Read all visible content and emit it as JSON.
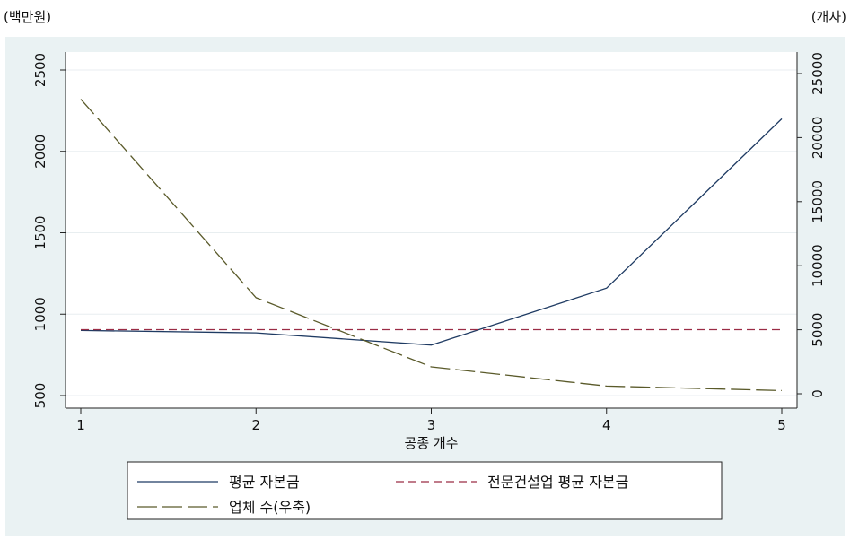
{
  "units": {
    "left": "(백만원)",
    "right": "(개사)"
  },
  "chart_data": {
    "type": "line",
    "xlabel": "공종 개수",
    "x": [
      1,
      2,
      3,
      4,
      5
    ],
    "y_left_ticks": [
      500,
      1000,
      1500,
      2000,
      2500
    ],
    "y_right_ticks": [
      0,
      5000,
      10000,
      15000,
      20000,
      25000
    ],
    "ylim_left": [
      500,
      2500
    ],
    "ylim_right": [
      0,
      25000
    ],
    "series": [
      {
        "name": "평균 자본금",
        "axis": "left",
        "style": "solid",
        "color": "#1f3b63",
        "values": [
          900,
          885,
          810,
          1160,
          2200
        ]
      },
      {
        "name": "전문건설업 평균 자본금",
        "axis": "left",
        "style": "dashed",
        "color": "#9b2c45",
        "values": [
          905,
          905,
          905,
          905,
          905
        ]
      },
      {
        "name": "업체 수(우축)",
        "axis": "right",
        "style": "longdash",
        "color": "#5a5a2a",
        "values": [
          23000,
          7500,
          2100,
          600,
          250
        ]
      }
    ],
    "legend_position": "bottom",
    "grid": true
  }
}
